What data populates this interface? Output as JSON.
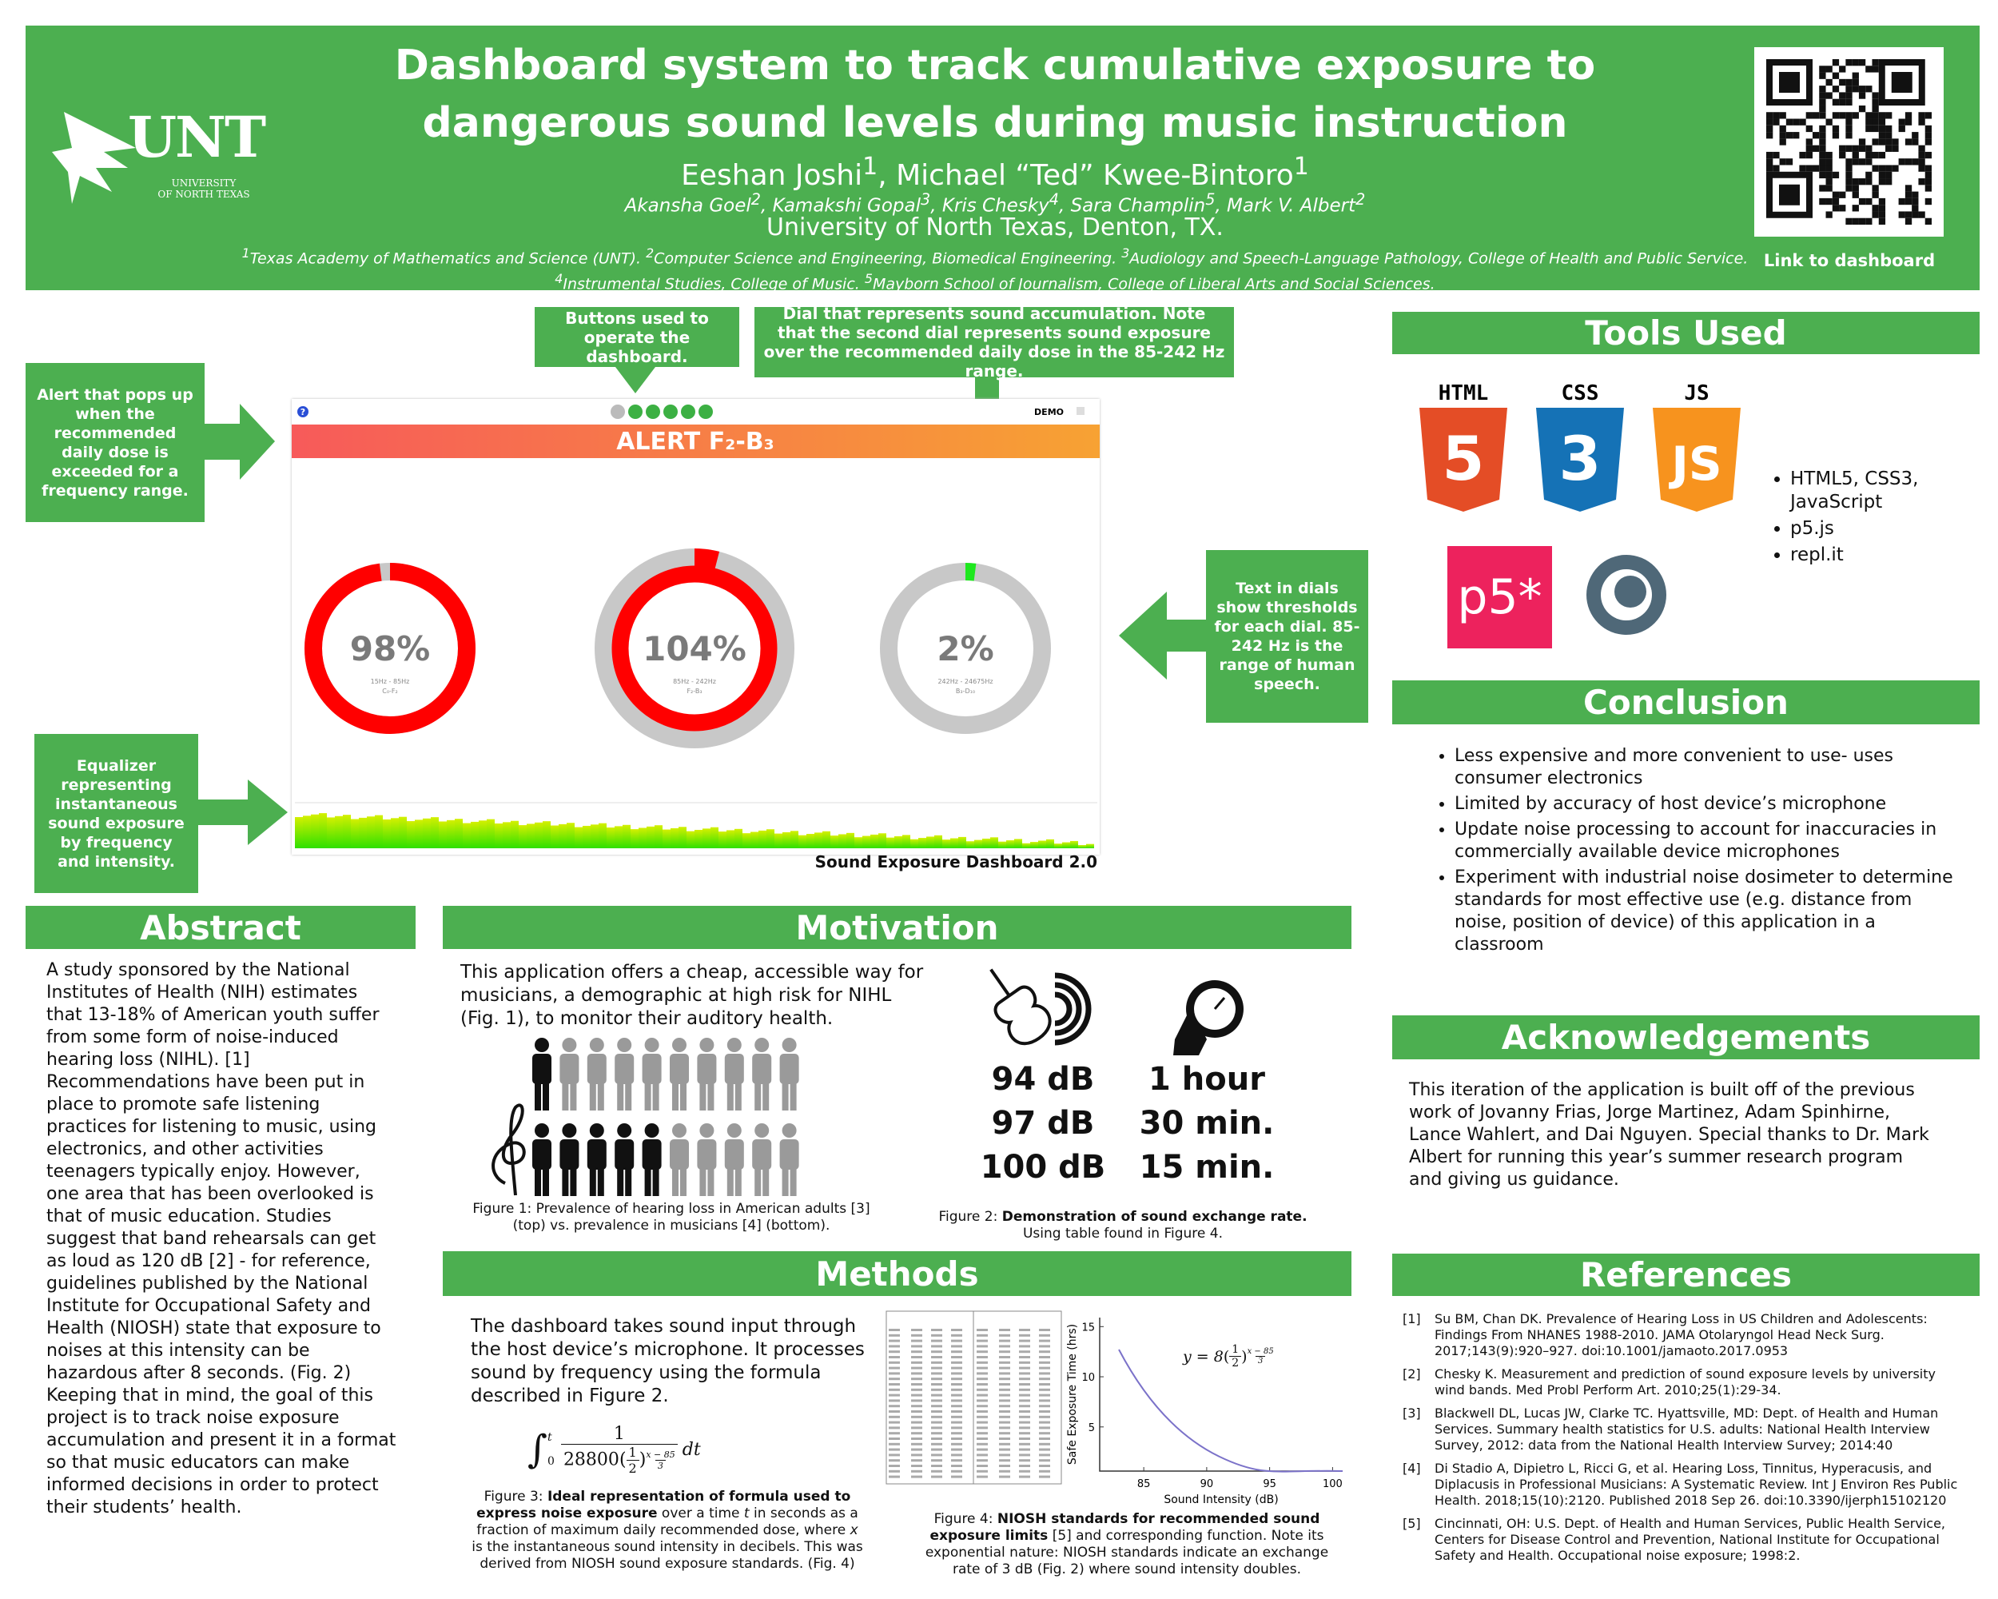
{
  "header": {
    "title": [
      "Dashboard system to track cumulative exposure to",
      "dangerous sound levels during music instruction"
    ],
    "authors": [
      {
        "t": "Eeshan Joshi"
      },
      {
        "t": "1",
        "sup": true
      },
      {
        "t": ", Michael “Ted” Kwee-Bintoro"
      },
      {
        "t": "1",
        "sup": true
      }
    ],
    "coauthors": [
      {
        "t": "Akansha Goel"
      },
      {
        "t": "2",
        "sup": true
      },
      {
        "t": ", Kamakshi Gopal"
      },
      {
        "t": "3",
        "sup": true
      },
      {
        "t": ", Kris Chesky"
      },
      {
        "t": "4",
        "sup": true
      },
      {
        "t": ", Sara Champlin"
      },
      {
        "t": "5",
        "sup": true
      },
      {
        "t": ", Mark V. Albert"
      },
      {
        "t": "2",
        "sup": true
      }
    ],
    "institution": "University of North Texas, Denton, TX.",
    "affiliations": [
      {
        "t": "1",
        "sup": true
      },
      {
        "t": "Texas Academy of Mathematics and Science (UNT).  "
      },
      {
        "t": "2",
        "sup": true
      },
      {
        "t": "Computer Science and Engineering, Biomedical Engineering. "
      },
      {
        "t": "3",
        "sup": true
      },
      {
        "t": "Audiology and Speech-Language Pathology, College of Health and Public Service. "
      },
      {
        "t": "4",
        "sup": true
      },
      {
        "t": "Instrumental Studies, College of Music.  "
      },
      {
        "t": "5",
        "sup": true
      },
      {
        "t": "Mayborn School of Journalism, College of Liberal Arts and Social Sciences."
      }
    ],
    "logo": {
      "mark": "UNT",
      "name": [
        "UNIVERSITY",
        "OF NORTH TEXAS"
      ]
    },
    "qr_caption": "Link to dashboard"
  },
  "callouts": [
    "Alert that pops up when the recommended daily dose is exceeded for a frequency range.",
    "Buttons used to operate the dashboard.",
    "Dial that represents sound accumulation. Note that the second dial represents sound exposure over the recommended daily dose in the 85-242 Hz range.",
    "Text in dials show thresholds for each dial. 85-242 Hz is the range of human speech.",
    "Equalizer representing instantaneous sound exposure by frequency and intensity."
  ],
  "dashboard": {
    "help": "?",
    "mode": "DEMO",
    "alert": "ALERT F₂-B₃",
    "dials": [
      {
        "value": 98,
        "label": "98%",
        "range": "15Hz - 85Hz",
        "notes": "C₀-F₂",
        "color": "#ff0000"
      },
      {
        "value": 104,
        "label": "104%",
        "range": "85Hz - 242Hz",
        "notes": "F₂-B₃",
        "color": "#ff0000"
      },
      {
        "value": 2,
        "label": "2%",
        "range": "242Hz - 24675Hz",
        "notes": "B₃-D₁₀",
        "color": "#1ee81e"
      }
    ],
    "caption": "Sound Exposure Dashboard 2.0"
  },
  "tools": {
    "title": "Tools Used",
    "logos": [
      "HTML",
      "CSS",
      "JS"
    ],
    "logo_marks": [
      "5",
      "3",
      "JS"
    ],
    "p5": "p5*",
    "items": [
      "HTML5, CSS3, JavaScript",
      "p5.js",
      "repl.it"
    ]
  },
  "conclusion": {
    "title": "Conclusion",
    "items": [
      "Less expensive and more convenient to use- uses consumer electronics",
      "Limited by accuracy of host device’s microphone",
      "Update noise processing to account for inaccuracies in commercially available device microphones",
      "Experiment with industrial noise dosimeter to determine standards for most effective use (e.g. distance from noise, position of device) of this application in a classroom"
    ]
  },
  "acknowledgements": {
    "title": "Acknowledgements",
    "text": "This iteration of the application is built off of the previous work of Jovanny Frias, Jorge Martinez, Adam Spinhirne, Lance Wahlert, and Dai Nguyen. Special thanks to Dr. Mark Albert for running this year’s summer research program and giving us guidance."
  },
  "references": {
    "title": "References",
    "items": [
      {
        "n": "[1]",
        "text": "Su BM, Chan DK. Prevalence of Hearing Loss in US Children and Adolescents: Findings From NHANES 1988-2010. JAMA Otolaryngol Head Neck Surg. 2017;143(9):920–927. doi:10.1001/jamaoto.2017.0953"
      },
      {
        "n": "[2]",
        "text": "Chesky K. Measurement and prediction of sound exposure levels by university wind bands. Med Probl Perform Art. 2010;25(1):29-34."
      },
      {
        "n": "[3]",
        "text": "Blackwell DL, Lucas JW, Clarke TC. Hyattsville, MD: Dept. of Health and Human Services. Summary health statistics for U.S. adults: National Health Interview Survey, 2012: data from the National Health Interview Survey; 2014:40"
      },
      {
        "n": "[4]",
        "text": "Di Stadio A, Dipietro L, Ricci G, et al. Hearing Loss, Tinnitus, Hyperacusis, and Diplacusis in Professional Musicians: A Systematic Review. Int J Environ Res Public Health. 2018;15(10):2120. Published 2018 Sep 26. doi:10.3390/ijerph15102120"
      },
      {
        "n": "[5]",
        "text": "Cincinnati, OH: U.S. Dept. of Health and Human Services, Public Health Service, Centers for Disease Control and Prevention, National Institute for Occupational Safety and Health. Occupational noise exposure; 1998:2."
      }
    ]
  },
  "abstract": {
    "title": "Abstract",
    "text": "A study sponsored by the National Institutes of Health (NIH) estimates that 13-18% of American youth suffer from some form of noise-induced hearing loss (NIHL). [1] Recommendations have been put in place to promote safe listening practices for listening to music, using electronics, and other activities teenagers typically enjoy. However, one area that has been overlooked is that of music education. Studies suggest that band rehearsals can get as loud as 120 dB [2] - for reference, guidelines published by the National Institute for Occupational Safety and Health (NIOSH) state that exposure to noises at this intensity can be hazardous after 8 seconds. (Fig. 2) Keeping that in mind, the goal of this project is to track noise exposure accumulation and present it in a format so that music educators can make informed decisions in order to protect their students’ health."
  },
  "motivation": {
    "title": "Motivation",
    "text": "This application offers a cheap, accessible way for musicians, a demographic at high risk for NIHL (Fig. 1), to monitor their auditory health.",
    "figure1_caption": "Figure 1: Prevalence of hearing loss in American adults [3] (top) vs. prevalence in musicians [4] (bottom).",
    "exchange": [
      [
        "94 dB",
        "1 hour"
      ],
      [
        "97 dB",
        "30 min."
      ],
      [
        "100 dB",
        "15 min."
      ]
    ],
    "figure2_caption": [
      {
        "t": "Figure 2: "
      },
      {
        "t": "Demonstration of sound exchange rate.",
        "b": true
      },
      {
        "t": " Using table found in Figure 4."
      }
    ]
  },
  "methods": {
    "title": "Methods",
    "text": "The dashboard takes sound input through the host device’s microphone. It processes sound by frequency using the formula described in Figure 2.",
    "integral": {
      "sign": "∫",
      "lower": "0",
      "upper": "t",
      "num": "1",
      "coef": "28800",
      "paren": [
        "(",
        ")"
      ],
      "half": [
        "1",
        "2"
      ],
      "exp": [
        "x − 85",
        "3"
      ],
      "dt": "dt"
    },
    "figure3_caption": [
      {
        "t": "Figure 3: "
      },
      {
        "t": "Ideal representation of formula used to express noise exposure",
        "b": true
      },
      {
        "t": " over a time "
      },
      {
        "t": "t",
        "i": true
      },
      {
        "t": " in seconds as a fraction of maximum daily recommended dose, where "
      },
      {
        "t": "x",
        "i": true
      },
      {
        "t": " is the instantaneous sound intensity in decibels. This was derived from NIOSH sound exposure standards. (Fig. 4)"
      }
    ],
    "figure4_caption": [
      {
        "t": "Figure 4: "
      },
      {
        "t": "NIOSH standards for recommended sound exposure limits",
        "b": true
      },
      {
        "t": " [5] and corresponding function. Note its exponential nature: NIOSH standards indicate an exchange rate of 3 dB (Fig. 2) where sound intensity doubles."
      }
    ],
    "plot": {
      "xlabel": "Sound Intensity (dB)",
      "ylabel": "Safe Exposure Time (hrs)",
      "xlim": [
        81.5,
        100.8
      ],
      "ylim": [
        0.6,
        15.9
      ],
      "xticks": [
        85,
        90,
        95,
        100
      ],
      "yticks": [
        5,
        10,
        15
      ],
      "formula": {
        "lhs": "y = 8",
        "paren": [
          "(",
          ")"
        ],
        "half": [
          "1",
          "2"
        ],
        "exp": [
          "x − 85",
          "3"
        ]
      }
    }
  }
}
